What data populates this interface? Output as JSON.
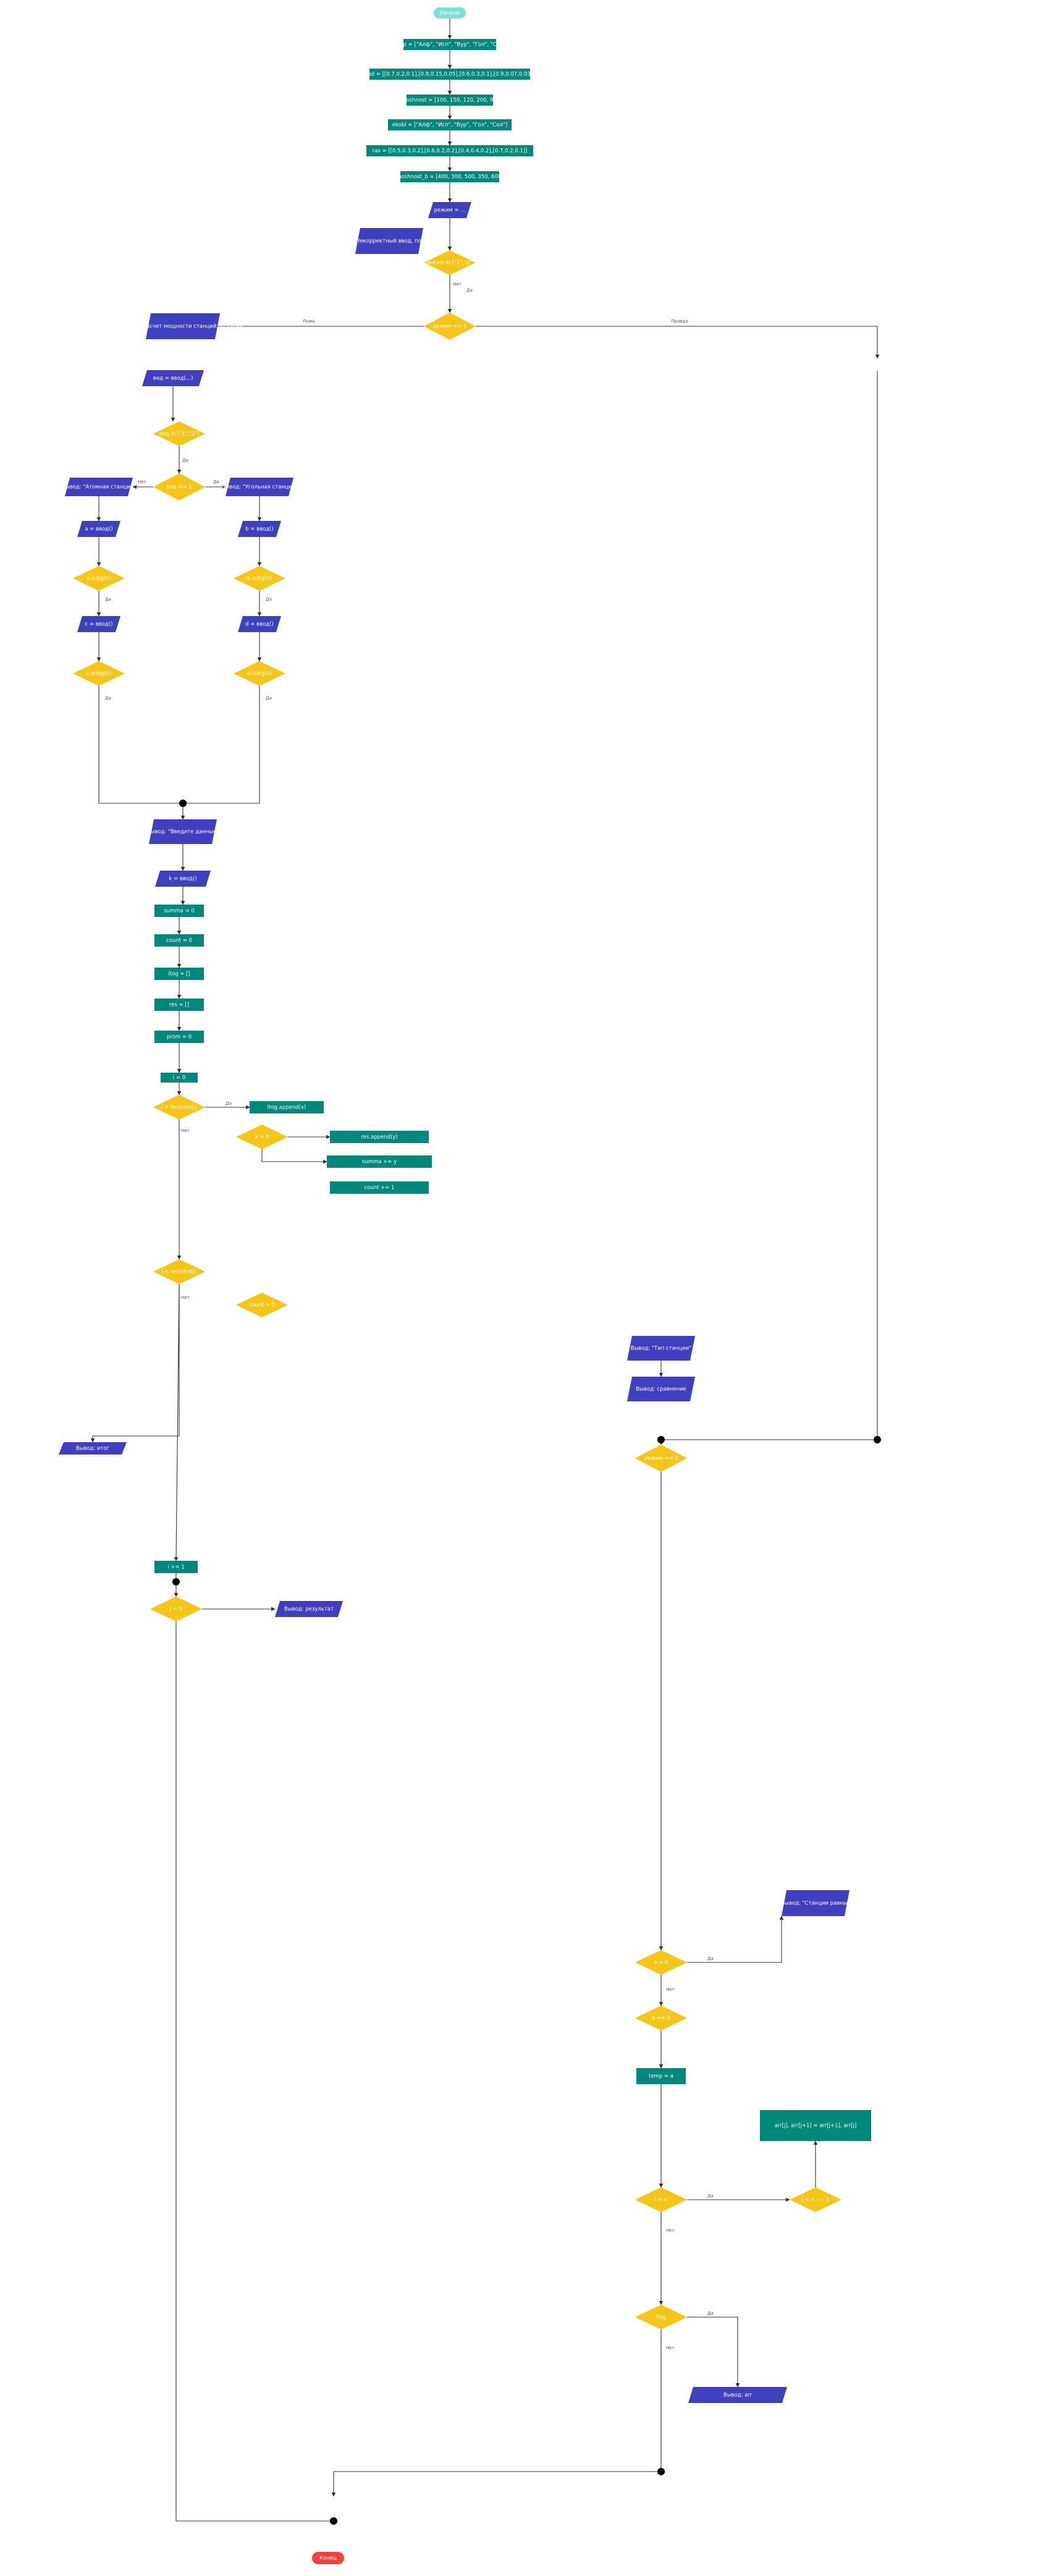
{
  "labels": {
    "start": "Начало",
    "end": "Конец",
    "yes": "Да",
    "no": "Нет",
    "yes_alt": "Правда",
    "no_alt": "Ложь"
  },
  "colors": {
    "process": "#00897b",
    "io": "#3f3fbf",
    "decision": "#f5c518",
    "terminal_start": "#7ee0d4",
    "terminal_end": "#f04040",
    "junction": "#000000",
    "edge": "#333333"
  },
  "nodes": [
    {
      "id": "n1",
      "type": "process",
      "text": "comp = [\"Алф\", \"Исп\", \"Вур\", \"Гол\", \"Сол\"]"
    },
    {
      "id": "n2",
      "type": "process",
      "text": "yad = [[0.7,0.2,0.1],[0.8,0.15,0.05],[0.6,0.3,0.1],[0.9,0.07,0.03]]"
    },
    {
      "id": "n3",
      "type": "process",
      "text": "moshnost = [100, 150, 120, 200, 90]"
    },
    {
      "id": "n4",
      "type": "process",
      "text": "ekobl = [\"Алф\", \"Исп\", \"Вур\", \"Гол\", \"Сол\"]"
    },
    {
      "id": "n5",
      "type": "process",
      "text": "ras = [[0.5,0.3,0.2],[0.6,0.2,0.2],[0.4,0.4,0.2],[0.7,0.2,0.1]]"
    },
    {
      "id": "n6",
      "type": "process",
      "text": "moshnost_b = [400, 300, 500, 350, 600]"
    },
    {
      "id": "n7",
      "type": "io",
      "text": "режим = ..."
    },
    {
      "id": "n8",
      "type": "io",
      "text": "Вывод: \"Некорректный ввод, повторите\""
    },
    {
      "id": "n9",
      "type": "decision",
      "text": "режим in [\"1\",\"2\"]"
    },
    {
      "id": "n10",
      "type": "decision",
      "text": "режим == 1"
    },
    {
      "id": "n11",
      "type": "io",
      "text": "Вывод: \"Расчет мощности станций по типам\""
    },
    {
      "id": "n12",
      "type": "io",
      "text": "вид = ввод(...)"
    },
    {
      "id": "n13",
      "type": "decision",
      "text": "вид in [\"1\",\"2\"]"
    },
    {
      "id": "n14",
      "type": "decision",
      "text": "вид == 1"
    },
    {
      "id": "n15",
      "type": "io",
      "text": "Вывод: \"Атомная станция\""
    },
    {
      "id": "n16",
      "type": "io",
      "text": "Вывод: \"Угольная станция\""
    },
    {
      "id": "n17",
      "type": "io",
      "text": "a = ввод()"
    },
    {
      "id": "n18",
      "type": "io",
      "text": "b = ввод()"
    },
    {
      "id": "n19",
      "type": "decision",
      "text": "a.isdigit()"
    },
    {
      "id": "n20",
      "type": "decision",
      "text": "b.isdigit()"
    },
    {
      "id": "n21",
      "type": "io",
      "text": "c = ввод()"
    },
    {
      "id": "n22",
      "type": "decision",
      "text": "c.isdigit()"
    },
    {
      "id": "n23",
      "type": "io",
      "text": "d = ввод()"
    },
    {
      "id": "n24",
      "type": "decision",
      "text": "d.isdigit()"
    },
    {
      "id": "n25",
      "type": "io",
      "text": "Вывод: \"Введите данные\""
    },
    {
      "id": "n26",
      "type": "io",
      "text": "k = ввод()"
    },
    {
      "id": "n27",
      "type": "process",
      "text": "summa = 0"
    },
    {
      "id": "n28",
      "type": "process",
      "text": "count = 0"
    },
    {
      "id": "n29",
      "type": "process",
      "text": "itog = []"
    },
    {
      "id": "n30",
      "type": "process",
      "text": "res = []"
    },
    {
      "id": "n31",
      "type": "process",
      "text": "prom = 0"
    },
    {
      "id": "n32",
      "type": "process",
      "text": "i = 0"
    },
    {
      "id": "n33",
      "type": "decision",
      "text": "i < len(comp)"
    },
    {
      "id": "n34",
      "type": "process",
      "text": "itog.append(x)"
    },
    {
      "id": "n35",
      "type": "decision",
      "text": "x > 0"
    },
    {
      "id": "n36",
      "type": "process",
      "text": "res.append(y)"
    },
    {
      "id": "n37",
      "type": "process",
      "text": "summa += y"
    },
    {
      "id": "n38",
      "type": "process",
      "text": "count += 1"
    },
    {
      "id": "n39",
      "type": "decision",
      "text": "i < len(ekobl)"
    },
    {
      "id": "n40",
      "type": "decision",
      "text": "count > 0"
    },
    {
      "id": "n41",
      "type": "io",
      "text": "Вывод: итог"
    },
    {
      "id": "n42",
      "type": "process",
      "text": "i += 1"
    },
    {
      "id": "n43",
      "type": "decision",
      "text": "j < 5"
    },
    {
      "id": "n44",
      "type": "io",
      "text": "Вывод: результат"
    },
    {
      "id": "n45",
      "type": "decision",
      "text": "режим == 2"
    },
    {
      "id": "n46",
      "type": "io",
      "text": "Вывод: \"Тип станции\""
    },
    {
      "id": "n47",
      "type": "io",
      "text": "Вывод: сравнение"
    },
    {
      "id": "n48",
      "type": "decision",
      "text": "a > b"
    },
    {
      "id": "n49",
      "type": "decision",
      "text": "a == b"
    },
    {
      "id": "n50",
      "type": "io",
      "text": "Вывод: \"Станции равны\""
    },
    {
      "id": "n51",
      "type": "process",
      "text": "temp = a"
    },
    {
      "id": "n52",
      "type": "decision",
      "text": "i < n"
    },
    {
      "id": "n53",
      "type": "decision",
      "text": "j < n - i - 1"
    },
    {
      "id": "n54",
      "type": "process",
      "text": "arr[j], arr[j+1] = arr[j+1], arr[j]"
    },
    {
      "id": "n55",
      "type": "io",
      "text": "Вывод: arr"
    },
    {
      "id": "n56",
      "type": "decision",
      "text": "flag"
    }
  ],
  "edge_labels": [
    "Да",
    "Нет",
    "Правда",
    "Ложь"
  ]
}
